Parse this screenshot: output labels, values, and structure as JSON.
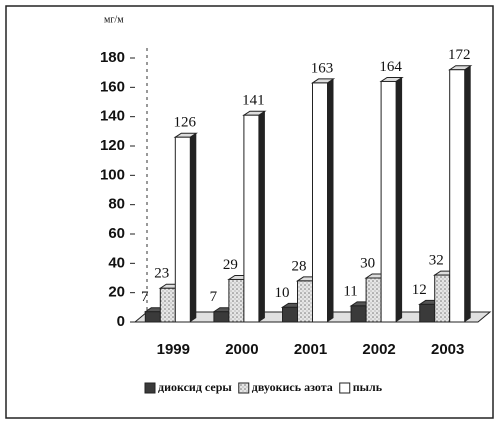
{
  "chart_data": {
    "type": "bar3d",
    "y_label": "мг/м",
    "categories": [
      "1999",
      "2000",
      "2001",
      "2002",
      "2003"
    ],
    "series": [
      {
        "name": "диоксид серы",
        "color": "#3a3a3a",
        "values": [
          7,
          7,
          10,
          11,
          12
        ]
      },
      {
        "name": "двуокись азота",
        "color": "#cfcfcf",
        "values": [
          23,
          29,
          28,
          30,
          32
        ]
      },
      {
        "name": "пыль",
        "color": "#ffffff",
        "values": [
          126,
          141,
          163,
          164,
          172
        ]
      }
    ],
    "ylim": [
      0,
      180
    ],
    "yticks": [
      0,
      20,
      40,
      60,
      80,
      100,
      120,
      140,
      160,
      180
    ],
    "legend": "bottom"
  }
}
